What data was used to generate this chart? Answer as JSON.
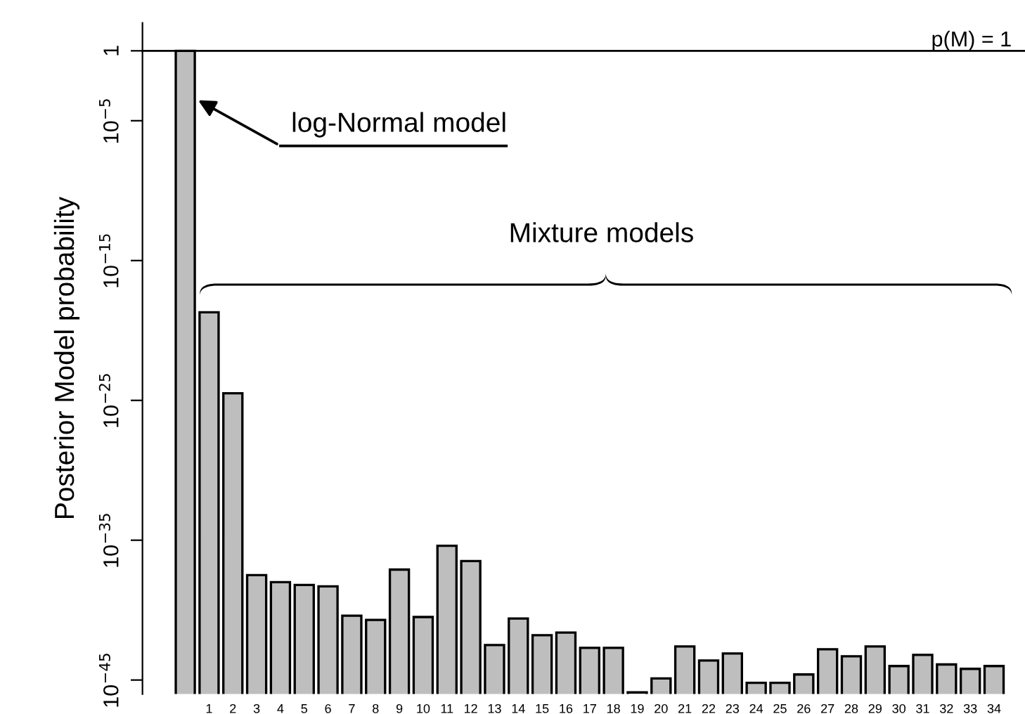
{
  "chart_data": {
    "type": "bar",
    "ylabel": "Posterior Model probability",
    "categories": [
      null,
      "1",
      "2",
      "3",
      "4",
      "5",
      "6",
      "7",
      "8",
      "9",
      "10",
      "11",
      "12",
      "13",
      "14",
      "15",
      "16",
      "17",
      "18",
      "19",
      "20",
      "21",
      "22",
      "23",
      "24",
      "25",
      "26",
      "27",
      "28",
      "29",
      "30",
      "31",
      "32",
      "33",
      "34"
    ],
    "values": [
      1,
      2e-19,
      3.2e-25,
      3.2e-38,
      1e-38,
      6.3e-39,
      5e-39,
      4e-41,
      2e-41,
      7.9e-38,
      3.2e-41,
      4e-36,
      3.2e-37,
      3.2e-43,
      2.5e-41,
      1.6e-42,
      2.5e-42,
      2e-43,
      2e-43,
      1.3e-46,
      1.3e-45,
      2.5e-43,
      2.5e-44,
      7.9e-44,
      6.3e-46,
      6.3e-46,
      2.5e-45,
      1.6e-43,
      5e-44,
      2.5e-43,
      1e-44,
      6.3e-44,
      1.3e-44,
      6.3e-45,
      1e-44
    ],
    "color": "#bebebe",
    "log": true,
    "ylim": [
      1e-46,
      100
    ],
    "yticks": [
      {
        "value": 1,
        "label": "1"
      },
      {
        "value": 1e-05,
        "label": "10$^{−5}$"
      },
      {
        "value": 1e-15,
        "label": "10$^{−15}$"
      },
      {
        "value": 1e-25,
        "label": "10$^{−25}$"
      },
      {
        "value": 1e-35,
        "label": "10$^{−35}$"
      },
      {
        "value": 1e-45,
        "label": "10$^{−45}$"
      }
    ],
    "ref_lines": [
      {
        "axis": "y",
        "value": 1,
        "label": "p(M) = 1",
        "color": "#000000"
      }
    ],
    "annotations": [
      "log-Normal model",
      "Mixture models"
    ],
    "grid": false
  }
}
